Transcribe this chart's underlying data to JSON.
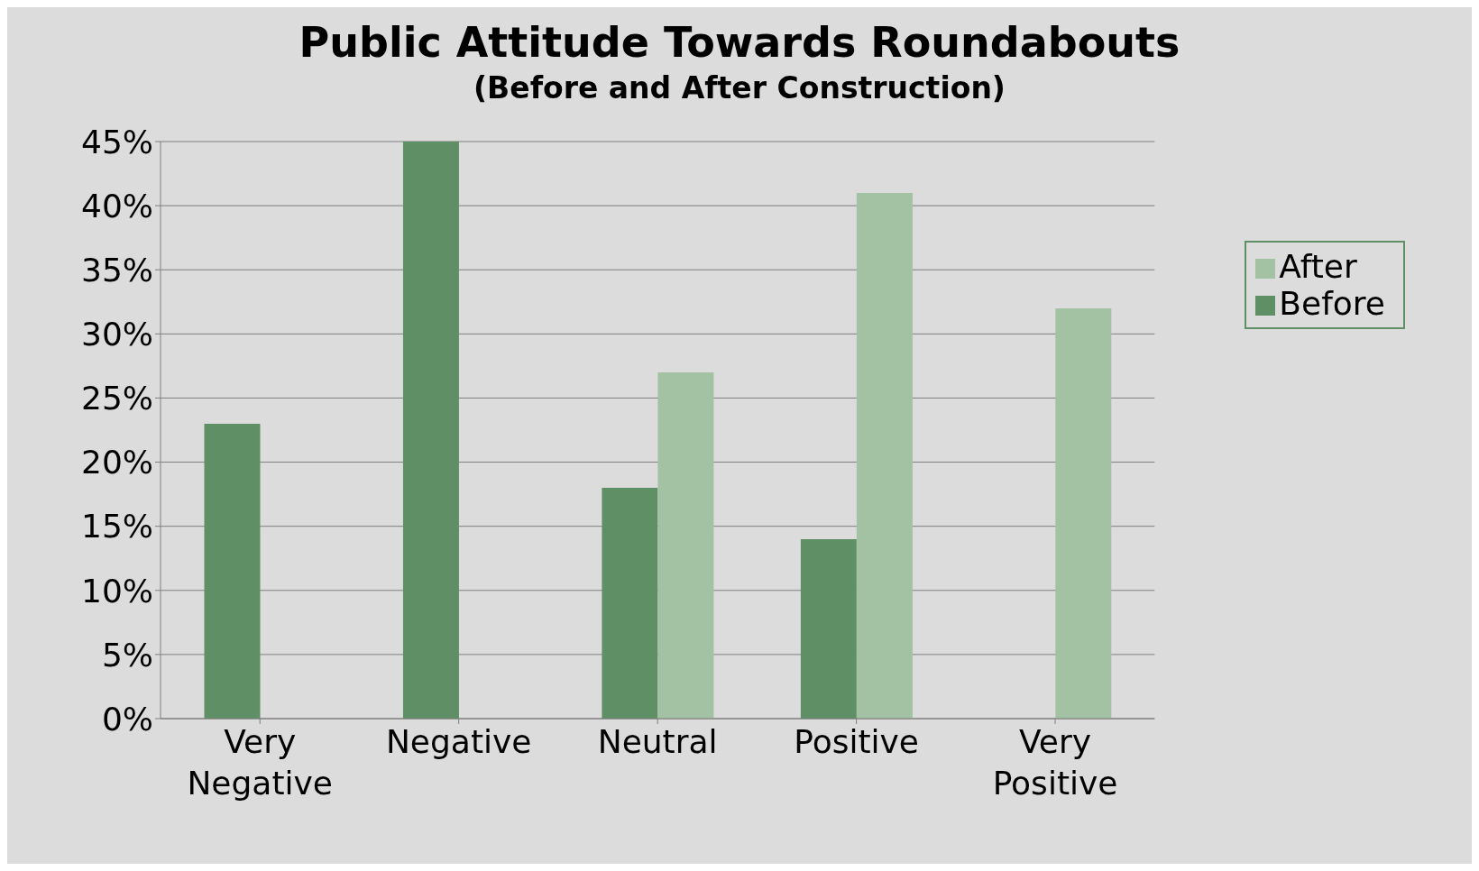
{
  "chart_data": {
    "type": "bar",
    "title": "Public Attitude Towards Roundabouts",
    "subtitle": "(Before and After Construction)",
    "categories": [
      "Very Negative",
      "Negative",
      "Neutral",
      "Positive",
      "Very Positive"
    ],
    "series": [
      {
        "name": "Before",
        "color": "#5f8f65",
        "values": [
          23,
          45,
          18,
          14,
          0
        ]
      },
      {
        "name": "After",
        "color": "#a3c1a3",
        "values": [
          0,
          0,
          27,
          41,
          32
        ]
      }
    ],
    "ylim": [
      0,
      45
    ],
    "yticks": [
      {
        "value": 0,
        "label": "0%"
      },
      {
        "value": 5,
        "label": "5%"
      },
      {
        "value": 10,
        "label": "10%"
      },
      {
        "value": 15,
        "label": "15%"
      },
      {
        "value": 20,
        "label": "20%"
      },
      {
        "value": 25,
        "label": "25%"
      },
      {
        "value": 30,
        "label": "30%"
      },
      {
        "value": 35,
        "label": "35%"
      },
      {
        "value": 40,
        "label": "40%"
      },
      {
        "value": 45,
        "label": "45%"
      }
    ],
    "grid": "y",
    "legend": "top right"
  }
}
